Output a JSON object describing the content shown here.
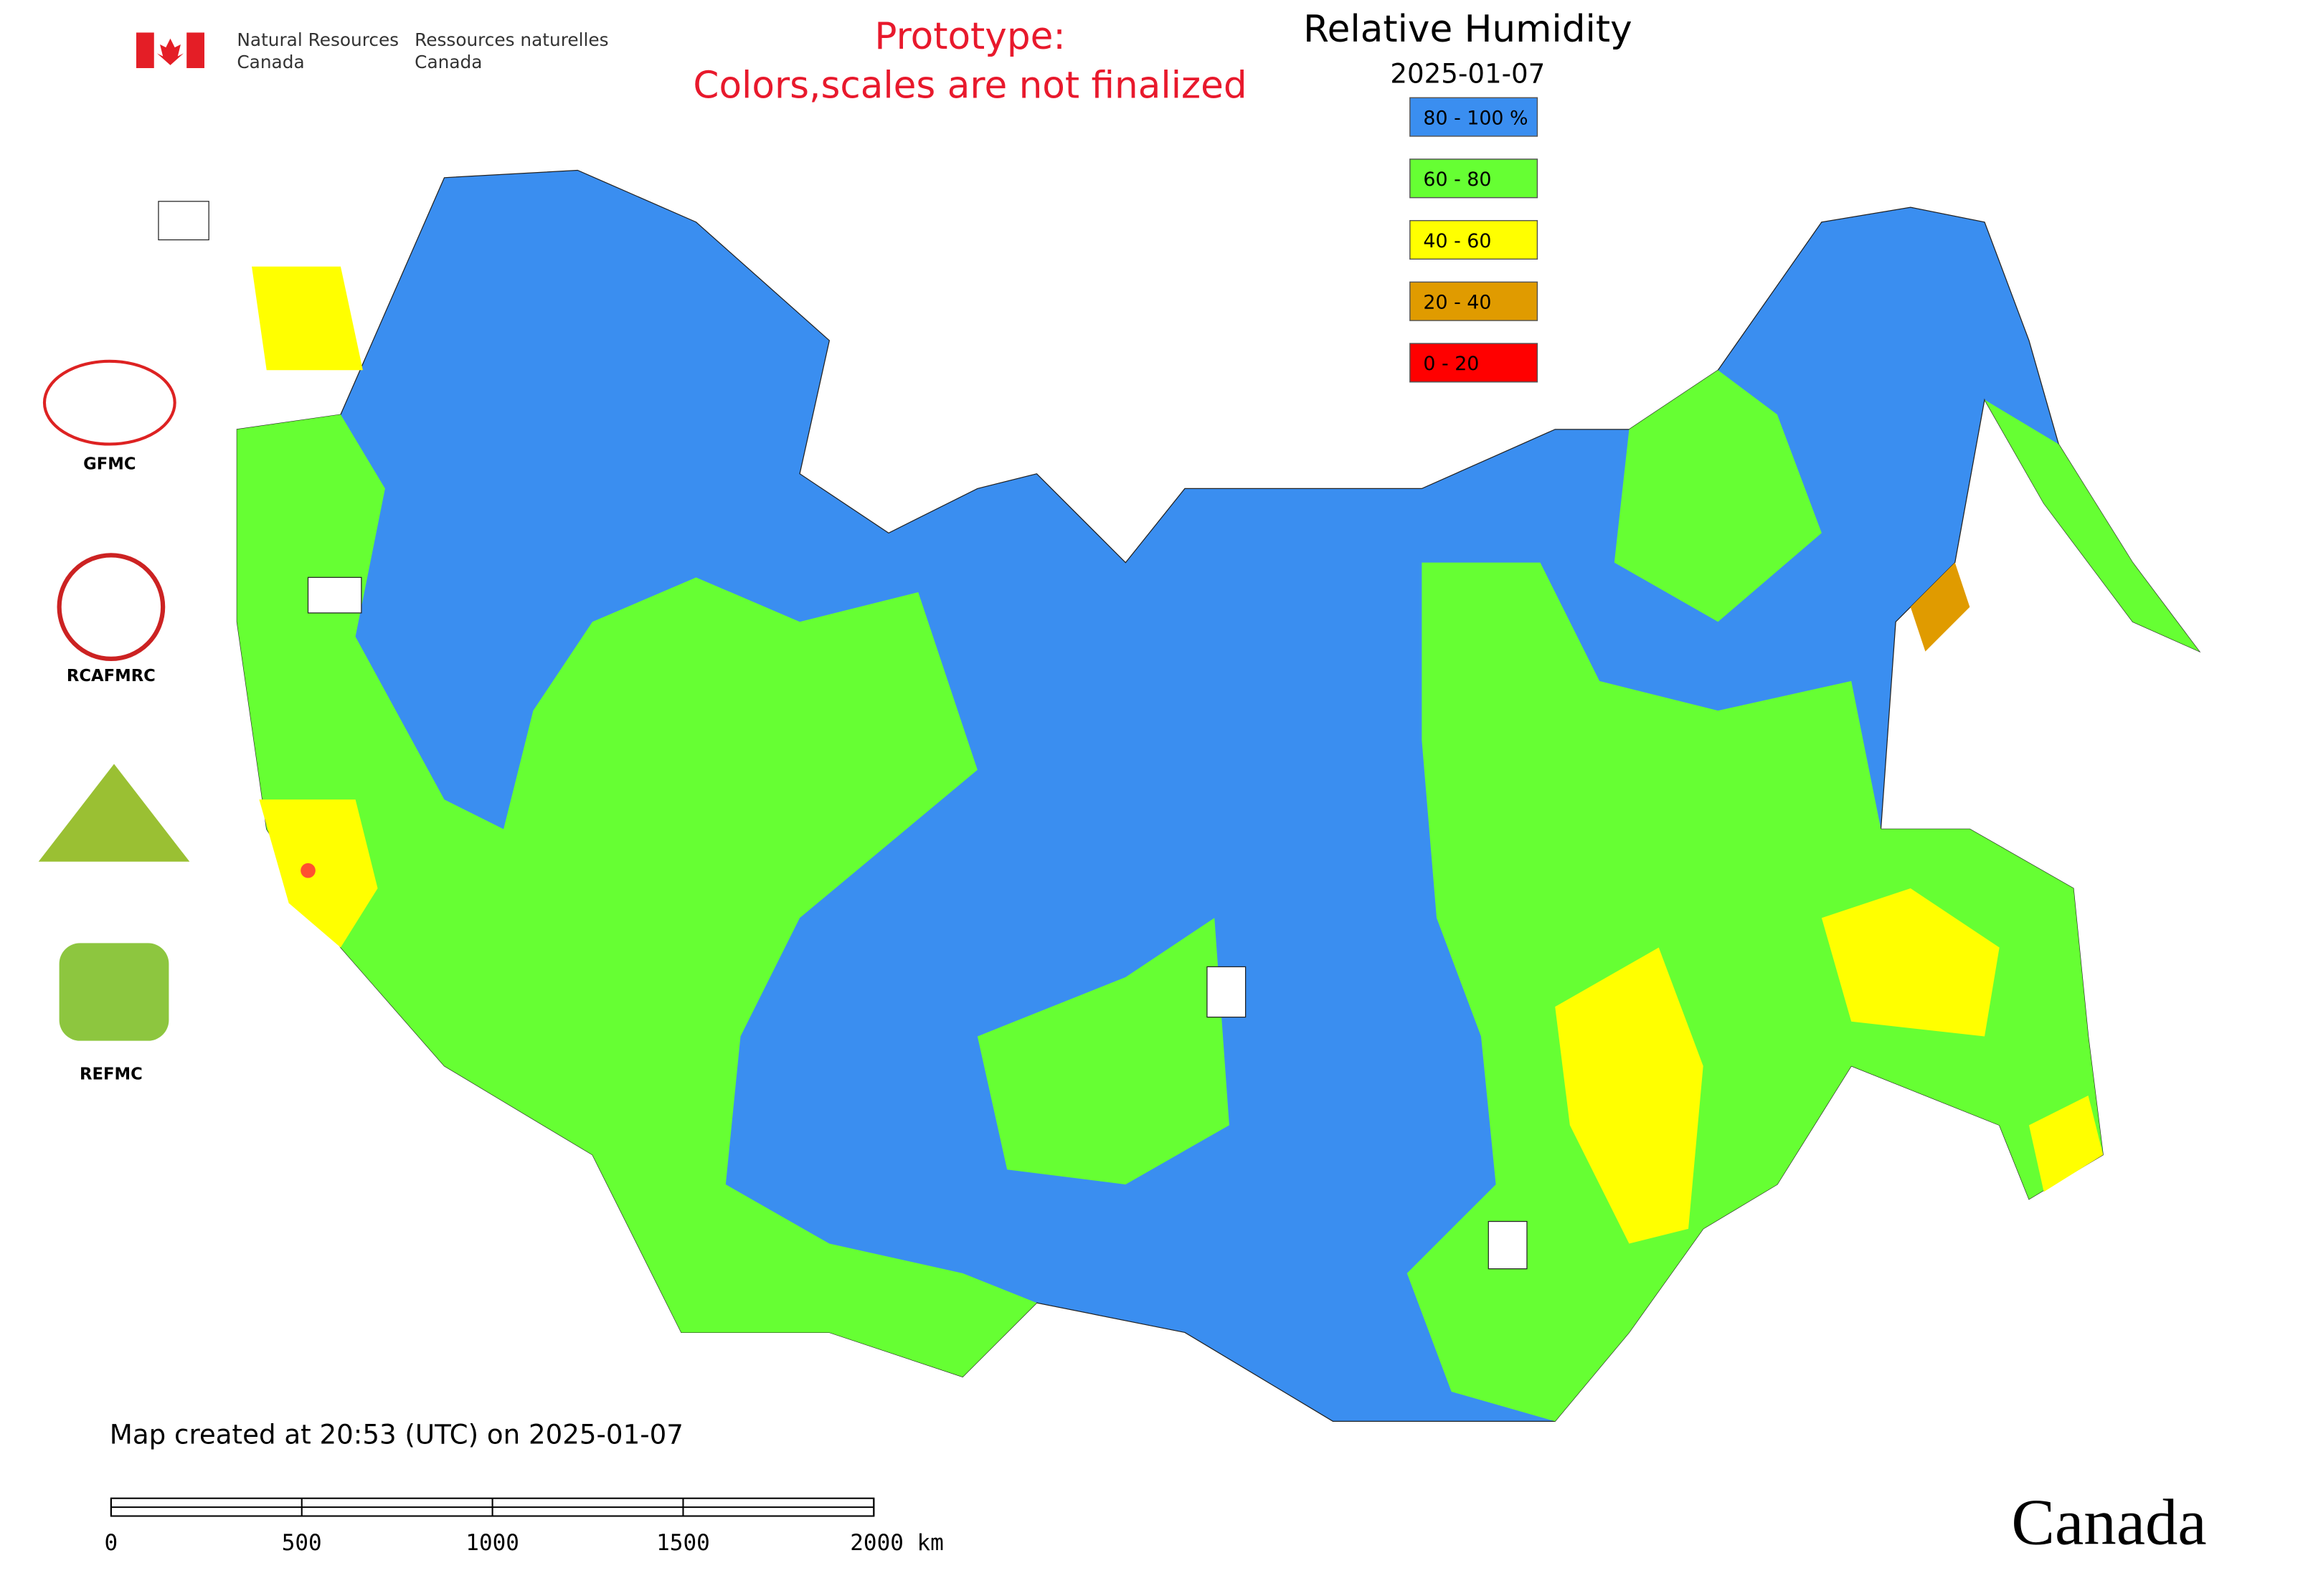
{
  "header": {
    "department_en": [
      "Natural Resources",
      "Canada"
    ],
    "department_fr": [
      "Ressources naturelles",
      "Canada"
    ]
  },
  "notice": [
    "Prototype:",
    "Colors,scales are not finalized"
  ],
  "title": "Relative Humidity",
  "date": "2025-01-07",
  "legend": [
    {
      "label": "80 - 100 %",
      "color": "#3a8ef0"
    },
    {
      "label": "60 - 80",
      "color": "#66ff33"
    },
    {
      "label": "40 - 60",
      "color": "#ffff00"
    },
    {
      "label": "20 - 40",
      "color": "#e09b00"
    },
    {
      "label": "0 - 20",
      "color": "#ff0000"
    }
  ],
  "logos": [
    "GFMC",
    "RCAFMRC",
    "REFMC"
  ],
  "footer": "Map created at 20:53 (UTC) on 2025-01-07",
  "scale_bar": {
    "lim": [
      0,
      2000
    ],
    "ticks": [
      0,
      500,
      1000,
      1500,
      {
        "value": 2000,
        "label": "2000 km"
      }
    ]
  },
  "wordmark": "Canada"
}
